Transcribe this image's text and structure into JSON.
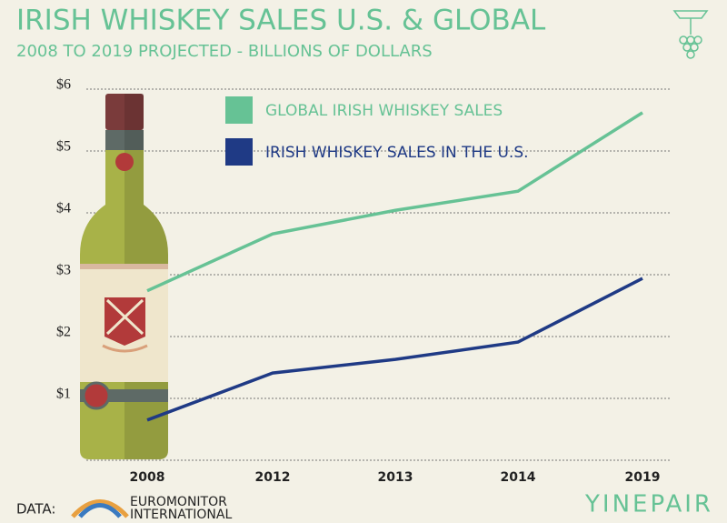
{
  "chart_data": {
    "type": "line",
    "title": "IRISH WHISKEY SALES U.S. & GLOBAL",
    "subtitle": "2008 TO 2019 PROJECTED - BILLIONS OF DOLLARS",
    "categories": [
      "2008",
      "2012",
      "2013",
      "2014",
      "2019"
    ],
    "series": [
      {
        "name": "GLOBAL IRISH WHISKEY SALES",
        "color": "#66c295",
        "values": [
          2.74,
          3.66,
          4.04,
          4.35,
          5.62
        ]
      },
      {
        "name": "IRISH WHISKEY SALES IN THE U.S.",
        "color": "#1f3a85",
        "values": [
          0.65,
          1.41,
          1.63,
          1.91,
          2.94
        ]
      }
    ],
    "ylim": [
      0,
      6
    ],
    "yticks": [
      {
        "value": 1,
        "label": "$1"
      },
      {
        "value": 2,
        "label": "$2"
      },
      {
        "value": 3,
        "label": "$3"
      },
      {
        "value": 4,
        "label": "$4"
      },
      {
        "value": 5,
        "label": "$5"
      },
      {
        "value": 6,
        "label": "$6"
      }
    ],
    "grid": true,
    "source_label": "DATA:",
    "source_name": [
      "EUROMONITOR",
      "INTERNATIONAL"
    ],
    "brand": "YINEPAIR"
  }
}
